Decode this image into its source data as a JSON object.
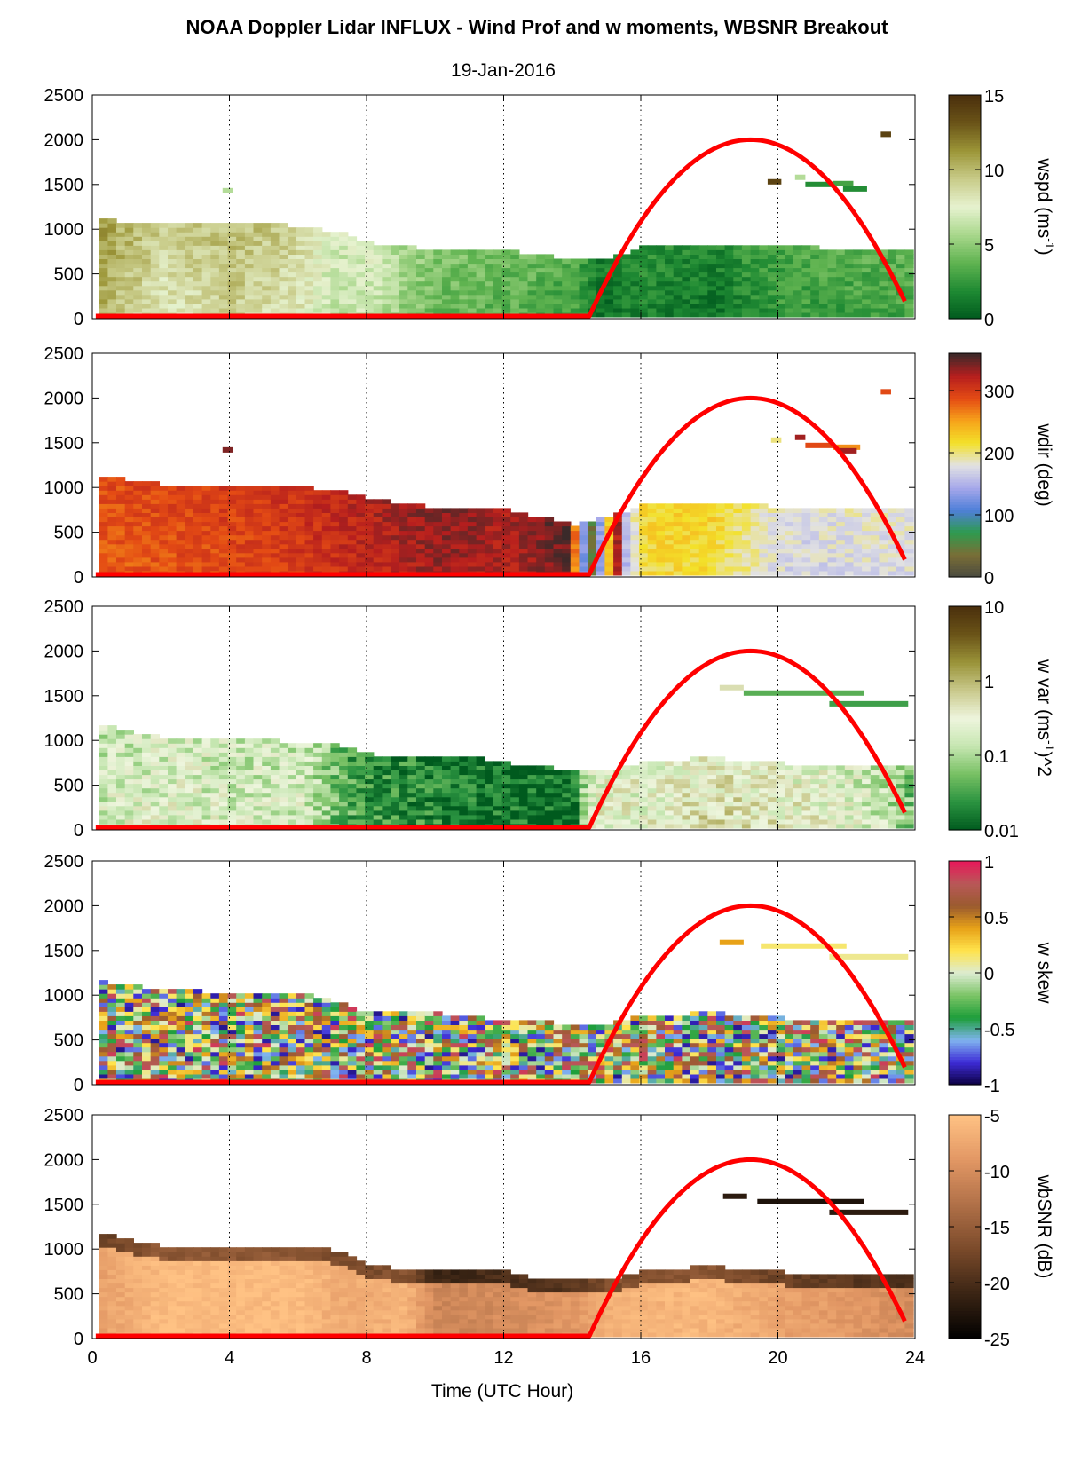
{
  "figure": {
    "title": "NOAA Doppler Lidar INFLUX - Wind Prof and w moments, WBSNR Breakout",
    "subtitle": "19-Jan-2016",
    "xlabel": "Time (UTC Hour)",
    "x_ticks": [
      "0",
      "4",
      "8",
      "12",
      "16",
      "20",
      "24"
    ]
  },
  "colors": {
    "sun_curve": "#ff0000",
    "wspd_cmap": [
      "#005a1e",
      "#1f8a33",
      "#5fb350",
      "#a8d78b",
      "#e6f2cf",
      "#c9cc8a",
      "#9c9638",
      "#6b5418",
      "#4a2f0c"
    ],
    "wdir_cmap": [
      "#4a4a40",
      "#7a6e36",
      "#2e9b4e",
      "#4f7fd9",
      "#a6a8ea",
      "#e2e2e2",
      "#f3e12a",
      "#f7a21a",
      "#e44b14",
      "#b51e1e",
      "#3a2a2a"
    ],
    "wvar_cmap": [
      "#005a1e",
      "#2a9340",
      "#77c063",
      "#c6e6b1",
      "#eef5dd",
      "#c9c98c",
      "#9a9339",
      "#6b5418",
      "#4a2f0c"
    ],
    "wskew_cmap": [
      "#0c0040",
      "#3d2bd6",
      "#80b4f0",
      "#1d9e3a",
      "#7bc465",
      "#dcebd2",
      "#ffe44d",
      "#e8a218",
      "#9a5b2e",
      "#b85858",
      "#e8185a"
    ],
    "snr_cmap": [
      "#000000",
      "#3a2414",
      "#7a4a2a",
      "#b07048",
      "#e29764",
      "#ffc284"
    ]
  },
  "chart_data": [
    {
      "type": "heatmap",
      "name": "wspd",
      "colorbar_label": "wspd (ms^-1)",
      "colorbar_ticks": [
        "0",
        "5",
        "10",
        "15"
      ],
      "colorbar_tick_values": [
        0,
        5,
        10,
        15
      ],
      "clim": [
        0,
        15
      ],
      "xlim": [
        0,
        24
      ],
      "ylim": [
        0,
        2500
      ],
      "y_ticks": [
        "0",
        "500",
        "1000",
        "1500",
        "2000",
        "2500"
      ],
      "grid": "dotted vertical lines at 4, 8, 12, 16, 20",
      "layer_top_m": [
        [
          0.2,
          1080
        ],
        [
          2,
          1040
        ],
        [
          4,
          1050
        ],
        [
          6,
          1010
        ],
        [
          7,
          950
        ],
        [
          8,
          820
        ],
        [
          9,
          780
        ],
        [
          10,
          740
        ],
        [
          11,
          760
        ],
        [
          12,
          740
        ],
        [
          13,
          690
        ],
        [
          14,
          640
        ],
        [
          15,
          650
        ],
        [
          16,
          790
        ],
        [
          18,
          800
        ],
        [
          20,
          780
        ],
        [
          22,
          760
        ],
        [
          23.8,
          760
        ]
      ],
      "speed_at_time": [
        [
          0.2,
          10
        ],
        [
          2,
          8
        ],
        [
          4,
          9
        ],
        [
          6,
          8
        ],
        [
          7,
          6
        ],
        [
          8,
          6.5
        ],
        [
          9,
          5
        ],
        [
          10,
          4
        ],
        [
          12,
          3.5
        ],
        [
          14,
          2.8
        ],
        [
          14.6,
          0.8
        ],
        [
          16,
          1.5
        ],
        [
          18,
          1
        ],
        [
          20,
          2.5
        ],
        [
          22,
          2.8
        ],
        [
          23.8,
          3
        ]
      ],
      "aloft_patches": [
        {
          "t0": 3.8,
          "t1": 4.1,
          "z": 1400,
          "value": 6
        },
        {
          "t0": 19.7,
          "t1": 20.1,
          "z": 1500,
          "value": 14
        },
        {
          "t0": 20.5,
          "t1": 20.8,
          "z": 1550,
          "value": 6
        },
        {
          "t0": 20.8,
          "t1": 21.6,
          "z": 1470,
          "value": 2
        },
        {
          "t0": 21.6,
          "t1": 22.2,
          "z": 1480,
          "value": 3
        },
        {
          "t0": 21.9,
          "t1": 22.6,
          "z": 1420,
          "value": 2
        },
        {
          "t0": 23.0,
          "t1": 23.3,
          "z": 2030,
          "value": 14
        }
      ]
    },
    {
      "type": "heatmap",
      "name": "wdir",
      "colorbar_label": "wdir (deg)",
      "colorbar_ticks": [
        "0",
        "100",
        "200",
        "300"
      ],
      "colorbar_tick_values": [
        0,
        100,
        200,
        300
      ],
      "clim": [
        0,
        360
      ],
      "xlim": [
        0,
        24
      ],
      "ylim": [
        0,
        2500
      ],
      "y_ticks": [
        "0",
        "500",
        "1000",
        "1500",
        "2000",
        "2500"
      ],
      "grid": "dotted vertical lines at 4, 8, 12, 16, 20",
      "layer_top_m": [
        [
          0.2,
          1100
        ],
        [
          2,
          1010
        ],
        [
          4,
          1020
        ],
        [
          6,
          980
        ],
        [
          7,
          950
        ],
        [
          8,
          850
        ],
        [
          9,
          800
        ],
        [
          10,
          740
        ],
        [
          11,
          770
        ],
        [
          12,
          720
        ],
        [
          13,
          640
        ],
        [
          14,
          560
        ],
        [
          15,
          650
        ],
        [
          16,
          780
        ],
        [
          18,
          800
        ],
        [
          20,
          760
        ],
        [
          22,
          740
        ],
        [
          23.8,
          740
        ]
      ],
      "direction_at_time": [
        [
          0.2,
          280
        ],
        [
          4,
          290
        ],
        [
          6,
          300
        ],
        [
          8,
          315
        ],
        [
          10,
          330
        ],
        [
          12,
          320
        ],
        [
          13,
          335
        ],
        [
          13.8,
          345
        ],
        [
          14.4,
          20
        ],
        [
          15.2,
          320
        ],
        [
          15.4,
          150
        ],
        [
          16,
          215
        ],
        [
          18,
          215
        ],
        [
          19.5,
          180
        ],
        [
          20.5,
          170
        ],
        [
          22,
          175
        ],
        [
          23.8,
          175
        ]
      ],
      "aloft_patches": [
        {
          "t0": 3.8,
          "t1": 4.1,
          "z": 1390,
          "value": 340
        },
        {
          "t0": 19.8,
          "t1": 20.1,
          "z": 1500,
          "value": 200
        },
        {
          "t0": 20.5,
          "t1": 20.8,
          "z": 1530,
          "value": 330
        },
        {
          "t0": 20.8,
          "t1": 21.6,
          "z": 1440,
          "value": 290
        },
        {
          "t0": 21.6,
          "t1": 22.4,
          "z": 1420,
          "value": 260
        },
        {
          "t0": 21.8,
          "t1": 22.3,
          "z": 1380,
          "value": 330
        },
        {
          "t0": 23.0,
          "t1": 23.3,
          "z": 2040,
          "value": 290
        }
      ]
    },
    {
      "type": "heatmap",
      "name": "w var",
      "colorbar_label": "w var (ms^-1)^2",
      "colorbar_ticks": [
        "0.01",
        "0.1",
        "1",
        "10"
      ],
      "colorbar_tick_values": [
        0.01,
        0.1,
        1,
        10
      ],
      "clim": [
        0.01,
        10
      ],
      "log_scale": true,
      "xlim": [
        0,
        24
      ],
      "ylim": [
        0,
        2500
      ],
      "y_ticks": [
        "0",
        "500",
        "1000",
        "1500",
        "2000",
        "2500"
      ],
      "grid": "dotted vertical lines at 4, 8, 12, 16, 20",
      "layer_top_m": [
        [
          0.2,
          1150
        ],
        [
          2,
          1000
        ],
        [
          4,
          990
        ],
        [
          6,
          960
        ],
        [
          7,
          920
        ],
        [
          8,
          820
        ],
        [
          9,
          790
        ],
        [
          10,
          780
        ],
        [
          11,
          800
        ],
        [
          12,
          720
        ],
        [
          13,
          680
        ],
        [
          14,
          640
        ],
        [
          15,
          650
        ],
        [
          16,
          750
        ],
        [
          18,
          780
        ],
        [
          20,
          720
        ],
        [
          22,
          700
        ],
        [
          23.8,
          700
        ]
      ],
      "variance_at_time": [
        [
          0.2,
          0.2
        ],
        [
          2,
          0.25
        ],
        [
          4,
          0.2
        ],
        [
          6,
          0.2
        ],
        [
          7,
          0.05
        ],
        [
          8,
          0.03
        ],
        [
          10,
          0.02
        ],
        [
          12,
          0.015
        ],
        [
          14,
          0.015
        ],
        [
          14.6,
          0.3
        ],
        [
          16,
          0.3
        ],
        [
          18,
          0.5
        ],
        [
          20,
          0.35
        ],
        [
          22,
          0.25
        ],
        [
          23.8,
          0.05
        ]
      ],
      "aloft_patches": [
        {
          "t0": 18.3,
          "t1": 19.0,
          "z": 1560,
          "value": 0.5
        },
        {
          "t0": 19.0,
          "t1": 22.5,
          "z": 1500,
          "value": 0.04
        },
        {
          "t0": 21.5,
          "t1": 23.8,
          "z": 1380,
          "value": 0.03
        }
      ]
    },
    {
      "type": "heatmap",
      "name": "w skew",
      "colorbar_label": "w skew",
      "colorbar_ticks": [
        "-1",
        "-0.5",
        "0",
        "0.5",
        "1"
      ],
      "colorbar_tick_values": [
        -1,
        -0.5,
        0,
        0.5,
        1
      ],
      "clim": [
        -1,
        1
      ],
      "xlim": [
        0,
        24
      ],
      "ylim": [
        0,
        2500
      ],
      "y_ticks": [
        "0",
        "500",
        "1000",
        "1500",
        "2000",
        "2500"
      ],
      "grid": "dotted vertical lines at 4, 8, 12, 16, 20",
      "layer_top_m": [
        [
          0.2,
          1130
        ],
        [
          2,
          1040
        ],
        [
          4,
          1000
        ],
        [
          6,
          990
        ],
        [
          7,
          900
        ],
        [
          8,
          780
        ],
        [
          10,
          770
        ],
        [
          12,
          700
        ],
        [
          13,
          680
        ],
        [
          14,
          640
        ],
        [
          15,
          660
        ],
        [
          16,
          750
        ],
        [
          18,
          780
        ],
        [
          20,
          720
        ],
        [
          22,
          700
        ],
        [
          23.8,
          700
        ]
      ],
      "aloft_patches": [
        {
          "t0": 18.3,
          "t1": 19.0,
          "z": 1560,
          "value": 0.4
        },
        {
          "t0": 19.5,
          "t1": 22.0,
          "z": 1520,
          "value": 0.15
        },
        {
          "t0": 21.5,
          "t1": 23.8,
          "z": 1400,
          "value": 0.1
        }
      ]
    },
    {
      "type": "heatmap",
      "name": "wbSNR",
      "colorbar_label": "wbSNR (dB)",
      "colorbar_ticks": [
        "-25",
        "-20",
        "-15",
        "-10",
        "-5"
      ],
      "colorbar_tick_values": [
        -25,
        -20,
        -15,
        -10,
        -5
      ],
      "clim": [
        -25,
        -5
      ],
      "xlim": [
        0,
        24
      ],
      "ylim": [
        0,
        2500
      ],
      "y_ticks": [
        "0",
        "500",
        "1000",
        "1500",
        "2000",
        "2500"
      ],
      "grid": "dotted vertical lines at 4, 8, 12, 16, 20",
      "layer_top_m": [
        [
          0.2,
          1150
        ],
        [
          2,
          1000
        ],
        [
          4,
          980
        ],
        [
          6,
          1000
        ],
        [
          7,
          960
        ],
        [
          8,
          780
        ],
        [
          9,
          760
        ],
        [
          10,
          740
        ],
        [
          11,
          760
        ],
        [
          12,
          720
        ],
        [
          13,
          640
        ],
        [
          14,
          640
        ],
        [
          15,
          650
        ],
        [
          16,
          750
        ],
        [
          18,
          780
        ],
        [
          20,
          720
        ],
        [
          22,
          700
        ],
        [
          23.8,
          700
        ]
      ],
      "snr_at_time": [
        [
          0.2,
          -8
        ],
        [
          2,
          -5.5
        ],
        [
          4,
          -5.5
        ],
        [
          6,
          -5.5
        ],
        [
          7,
          -7
        ],
        [
          8,
          -7
        ],
        [
          9,
          -6
        ],
        [
          10,
          -11
        ],
        [
          12,
          -10
        ],
        [
          14,
          -9
        ],
        [
          15,
          -6.5
        ],
        [
          18,
          -6
        ],
        [
          20,
          -8
        ],
        [
          22,
          -9
        ],
        [
          23.8,
          -10
        ]
      ],
      "aloft_patches": [
        {
          "t0": 18.4,
          "t1": 19.1,
          "z": 1560,
          "value": -22
        },
        {
          "t0": 19.4,
          "t1": 22.5,
          "z": 1500,
          "value": -23
        },
        {
          "t0": 21.5,
          "t1": 23.8,
          "z": 1380,
          "value": -22
        }
      ]
    }
  ],
  "sun_curve": {
    "description_series": "solar elevation proxy",
    "rise_hour": 14.5,
    "peak_hour": 19.2,
    "peak_m": 2000,
    "end_hour": 23.8,
    "end_m": 160,
    "baseline_m": 30
  }
}
